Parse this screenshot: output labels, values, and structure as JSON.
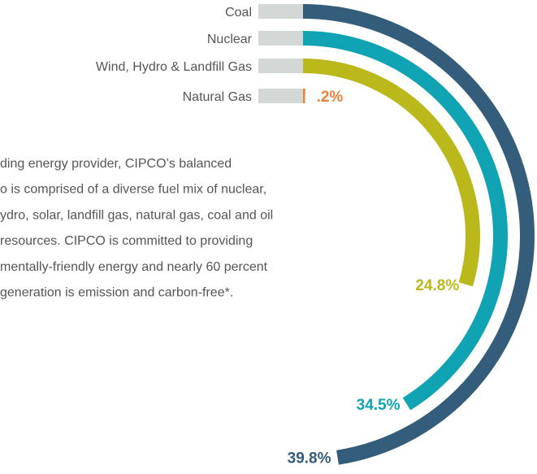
{
  "chart_data": {
    "type": "radial-bar",
    "categories": [
      "Coal",
      "Nuclear",
      "Wind, Hydro &  Landfill Gas",
      "Natural Gas"
    ],
    "values": [
      39.8,
      34.5,
      24.8,
      0.2
    ],
    "value_labels": [
      "39.8%",
      "34.5%",
      "24.8%",
      ".2%"
    ],
    "colors": [
      "#335d7a",
      "#0fa3b4",
      "#bbb81c",
      "#e8833a"
    ]
  },
  "paragraph": [
    "ding energy provider, CIPCO’s balanced",
    "o is comprised of a diverse fuel mix of nuclear,",
    "ydro, solar, landfill gas, natural gas, coal and oil",
    "resources. CIPCO is committed to providing",
    "mentally-friendly energy and nearly 60 percent",
    "generation is emission and carbon-free*."
  ]
}
